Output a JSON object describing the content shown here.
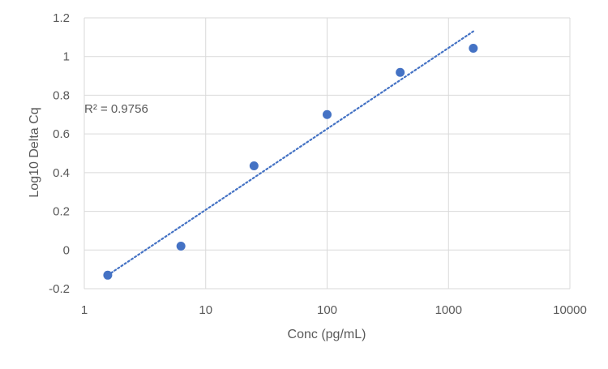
{
  "chart_data": {
    "type": "scatter",
    "title": "",
    "xlabel": "Conc (pg/mL)",
    "ylabel": "Log10 Delta Cq",
    "xscale": "log",
    "xlim": [
      1,
      10000
    ],
    "ylim": [
      -0.2,
      1.2
    ],
    "x_ticks": [
      1,
      10,
      100,
      1000,
      10000
    ],
    "x_tick_labels": [
      "1",
      "10",
      "100",
      "1000",
      "10000"
    ],
    "y_ticks": [
      -0.2,
      0,
      0.2,
      0.4,
      0.6,
      0.8,
      1,
      1.2
    ],
    "y_tick_labels": [
      "-0.2",
      "0",
      "0.2",
      "0.4",
      "0.6",
      "0.8",
      "1",
      "1.2"
    ],
    "grid": true,
    "legend": "none",
    "series": [
      {
        "color": "#4472C4",
        "x": [
          1.56,
          6.25,
          25,
          100,
          400,
          1600
        ],
        "y": [
          -0.13,
          0.02,
          0.435,
          0.7,
          0.918,
          1.043
        ]
      }
    ],
    "trendline": {
      "type": "logarithmic",
      "style": "dotted",
      "color": "#4472C4",
      "x_start": 1.56,
      "y_start": -0.13,
      "x_end": 1600,
      "y_end": 1.13
    },
    "annotations": [
      {
        "text": "R² = 0.9756",
        "x": 1,
        "y": 0.73
      }
    ],
    "colors": {
      "grid": "#D9D9D9",
      "text": "#595959",
      "marker": "#4472C4"
    }
  }
}
